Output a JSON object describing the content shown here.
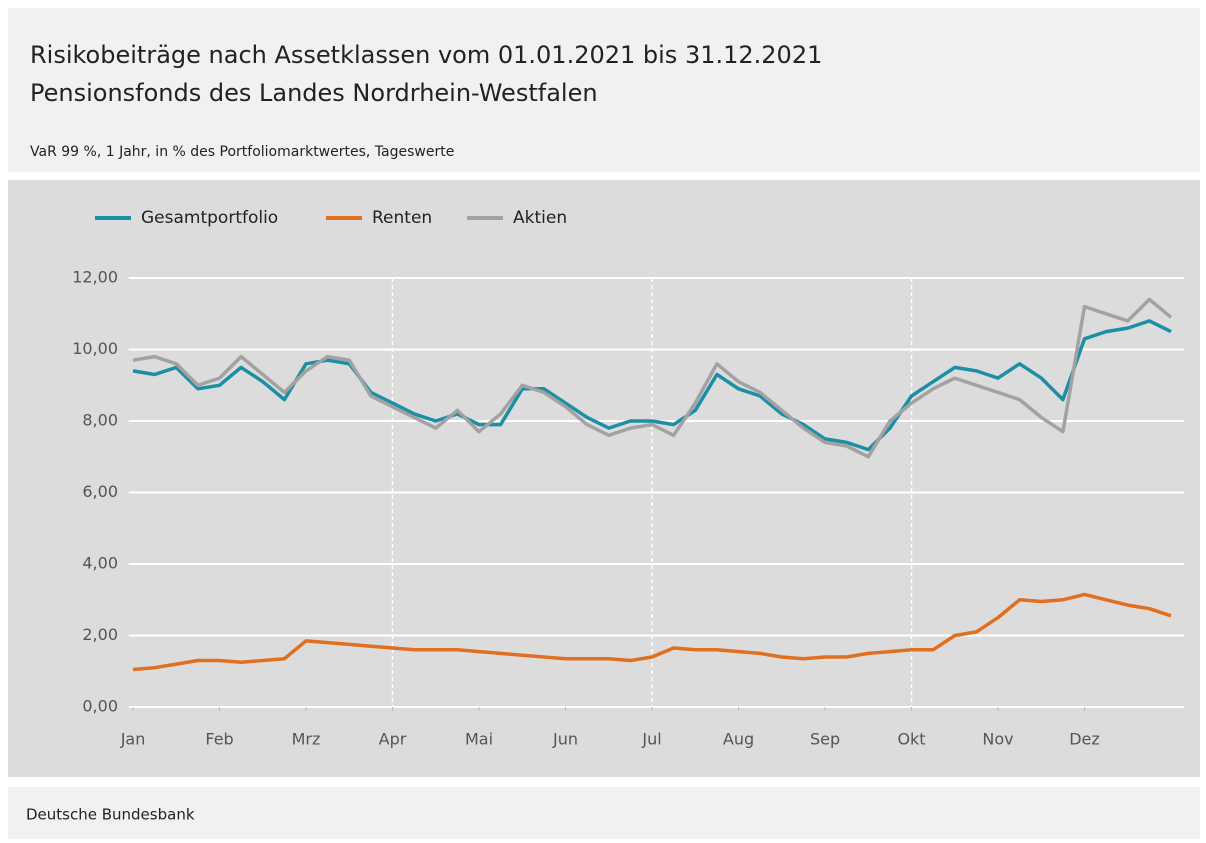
{
  "chart_data": {
    "type": "line",
    "title": "Risikobeiträge nach Assetklassen vom 01.01.2021 bis 31.12.2021",
    "subtitle": "Pensionsfonds des Landes Nordrhein-Westfalen",
    "note": "VaR 99 %, 1 Jahr, in % des Portfoliomarktwertes, Tageswerte",
    "source": "Deutsche Bundesbank",
    "x": [
      0,
      0.25,
      0.5,
      0.75,
      1,
      1.25,
      1.5,
      1.75,
      2,
      2.25,
      2.5,
      2.75,
      3,
      3.25,
      3.5,
      3.75,
      4,
      4.25,
      4.5,
      4.75,
      5,
      5.25,
      5.5,
      5.75,
      6,
      6.25,
      6.5,
      6.75,
      7,
      7.25,
      7.5,
      7.75,
      8,
      8.25,
      8.5,
      8.75,
      9,
      9.25,
      9.5,
      9.75,
      10,
      10.25,
      10.5,
      10.75,
      11,
      11.25,
      11.5,
      11.75,
      12
    ],
    "series": [
      {
        "name": "Gesamtportfolio",
        "color": "#1b8fa6",
        "values": [
          9.4,
          9.3,
          9.5,
          8.9,
          9.0,
          9.5,
          9.1,
          8.6,
          9.6,
          9.7,
          9.6,
          8.8,
          8.5,
          8.2,
          8.0,
          8.2,
          7.9,
          7.9,
          8.9,
          8.9,
          8.5,
          8.1,
          7.8,
          8.0,
          8.0,
          7.9,
          8.3,
          9.3,
          8.9,
          8.7,
          8.2,
          7.9,
          7.5,
          7.4,
          7.2,
          7.8,
          8.7,
          9.1,
          9.5,
          9.4,
          9.2,
          9.6,
          9.2,
          8.6,
          10.3,
          10.5,
          10.6,
          10.8,
          10.5
        ]
      },
      {
        "name": "Renten",
        "color": "#e07020",
        "values": [
          1.05,
          1.1,
          1.2,
          1.3,
          1.3,
          1.25,
          1.3,
          1.35,
          1.85,
          1.8,
          1.75,
          1.7,
          1.65,
          1.6,
          1.6,
          1.6,
          1.55,
          1.5,
          1.45,
          1.4,
          1.35,
          1.35,
          1.35,
          1.3,
          1.4,
          1.65,
          1.6,
          1.6,
          1.55,
          1.5,
          1.4,
          1.35,
          1.4,
          1.4,
          1.5,
          1.55,
          1.6,
          1.6,
          2.0,
          2.1,
          2.5,
          3.0,
          2.95,
          3.0,
          3.15,
          3.0,
          2.85,
          2.75,
          2.55
        ]
      },
      {
        "name": "Aktien",
        "color": "#a2a2a2",
        "values": [
          9.7,
          9.8,
          9.6,
          9.0,
          9.2,
          9.8,
          9.3,
          8.8,
          9.4,
          9.8,
          9.7,
          8.7,
          8.4,
          8.1,
          7.8,
          8.3,
          7.7,
          8.2,
          9.0,
          8.8,
          8.4,
          7.9,
          7.6,
          7.8,
          7.9,
          7.6,
          8.5,
          9.6,
          9.1,
          8.8,
          8.3,
          7.8,
          7.4,
          7.3,
          7.0,
          8.0,
          8.5,
          8.9,
          9.2,
          9.0,
          8.8,
          8.6,
          8.1,
          7.7,
          11.2,
          11.0,
          10.8,
          11.4,
          10.9
        ]
      }
    ],
    "xlim": [
      -0.05,
      12.12
    ],
    "xticks": [
      {
        "value": 0,
        "label": "Jan"
      },
      {
        "value": 1,
        "label": "Feb"
      },
      {
        "value": 2,
        "label": "Mrz"
      },
      {
        "value": 3,
        "label": "Apr"
      },
      {
        "value": 4,
        "label": "Mai"
      },
      {
        "value": 5,
        "label": "Jun"
      },
      {
        "value": 6,
        "label": "Jul"
      },
      {
        "value": 7,
        "label": "Aug"
      },
      {
        "value": 8,
        "label": "Sep"
      },
      {
        "value": 9,
        "label": "Okt"
      },
      {
        "value": 10,
        "label": "Nov"
      },
      {
        "value": 11,
        "label": "Dez"
      }
    ],
    "xgrid": [
      3,
      6,
      9
    ],
    "ylim": [
      0,
      12
    ],
    "yticks": [
      {
        "value": 0,
        "label": "0,00"
      },
      {
        "value": 2,
        "label": "2,00"
      },
      {
        "value": 4,
        "label": "4,00"
      },
      {
        "value": 6,
        "label": "6,00"
      },
      {
        "value": 8,
        "label": "8,00"
      },
      {
        "value": 10,
        "label": "10,00"
      },
      {
        "value": 12,
        "label": "12,00"
      }
    ],
    "grid": true,
    "legend": "top-left"
  }
}
